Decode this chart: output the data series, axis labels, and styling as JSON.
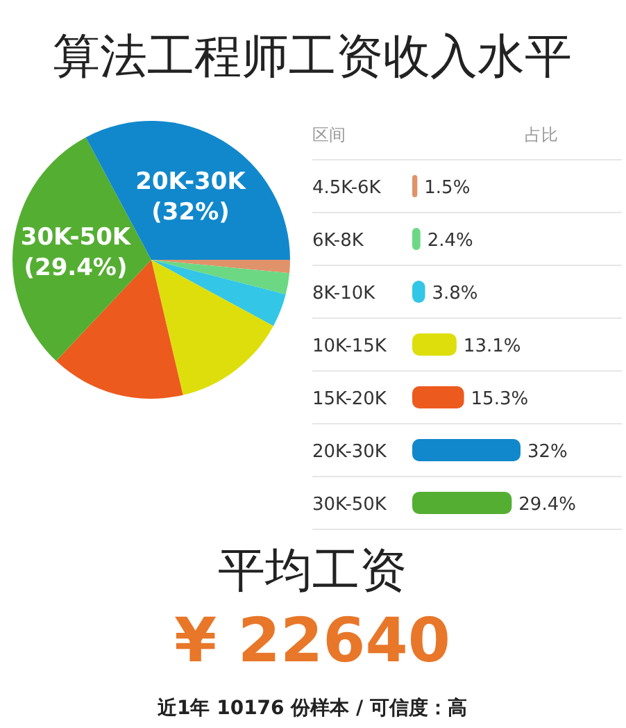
{
  "chart_data": [
    {
      "type": "pie",
      "title": "算法工程师工资收入水平",
      "categories": [
        null,
        null,
        null,
        null,
        null,
        "30K-50K",
        "20K-30K"
      ],
      "values": [
        1.5,
        2.4,
        3.8,
        13.1,
        15.3,
        29.4,
        32
      ],
      "colors": [
        "#e0936a",
        "#6cd884",
        "#33c6e6",
        "#dede0c",
        "#ec5a1e",
        "#54ae32",
        "#1188cc"
      ],
      "value_labels": [
        null,
        null,
        null,
        null,
        null,
        "(29.4%)",
        "(32%)"
      ]
    },
    {
      "type": "bar",
      "orientation": "horizontal",
      "ylabel": "区间",
      "xlabel": "占比",
      "categories": [
        "4.5K-6K",
        "6K-8K",
        "8K-10K",
        "10K-15K",
        "15K-20K",
        "20K-30K",
        "30K-50K"
      ],
      "values": [
        1.5,
        2.4,
        3.8,
        13.1,
        15.3,
        32,
        29.4
      ],
      "colors": [
        "#e0936a",
        "#6cd884",
        "#33c6e6",
        "#dede0c",
        "#ec5a1e",
        "#1188cc",
        "#54ae32"
      ],
      "value_labels": [
        "1.5%",
        "2.4%",
        "3.8%",
        "13.1%",
        "15.3%",
        "32%",
        "29.4%"
      ]
    },
    {
      "type": "other",
      "title": "平均工资",
      "annotations": [
        "¥ 22640",
        "近1年 10176 份样本 / 可信度：高"
      ]
    }
  ]
}
